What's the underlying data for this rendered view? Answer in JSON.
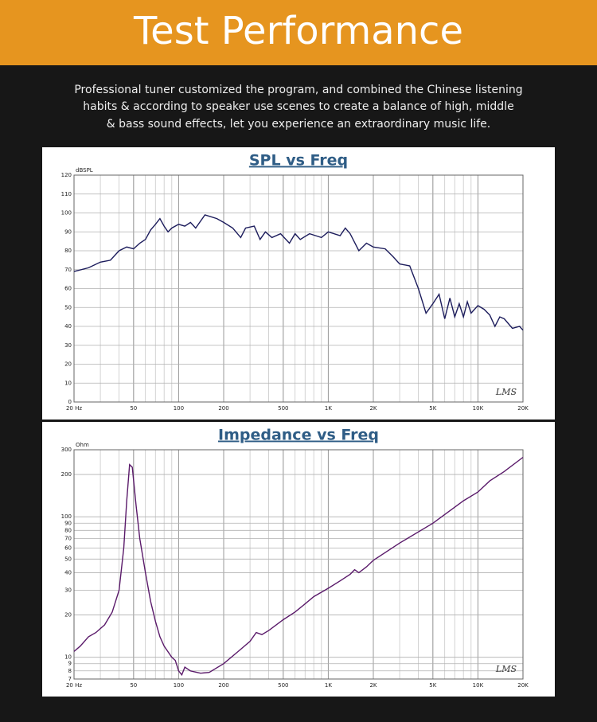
{
  "header": {
    "title": "Test Performance"
  },
  "description": [
    "Professional tuner customized the program, and combined the Chinese listening",
    "habits & according to speaker use scenes to create a balance of high, middle",
    "& bass sound effects, let you experience an extraordinary music life."
  ],
  "chart_data": [
    {
      "type": "line",
      "title": "SPL vs Freq",
      "ylabel": "dBSPL",
      "watermark": "LMS",
      "color": "#1c1c5c",
      "xscale": "log",
      "yscale": "linear",
      "xlim": [
        20,
        20000
      ],
      "ylim": [
        0,
        120
      ],
      "xticks": [
        {
          "value": 20,
          "label": "20 Hz"
        },
        50,
        100,
        200,
        500,
        {
          "value": 1000,
          "label": "1K"
        },
        {
          "value": 2000,
          "label": "2K"
        },
        {
          "value": 5000,
          "label": "5K"
        },
        {
          "value": 10000,
          "label": "10K"
        },
        {
          "value": 20000,
          "label": "20K"
        }
      ],
      "xgrid": [
        20,
        30,
        40,
        50,
        60,
        70,
        80,
        90,
        100,
        200,
        300,
        400,
        500,
        600,
        700,
        800,
        900,
        1000,
        2000,
        3000,
        4000,
        5000,
        6000,
        7000,
        8000,
        9000,
        10000,
        20000
      ],
      "yticks": [
        0,
        10,
        20,
        30,
        40,
        50,
        60,
        70,
        80,
        90,
        100,
        110,
        120
      ],
      "x": [
        20,
        25,
        30,
        35,
        40,
        45,
        50,
        55,
        60,
        65,
        70,
        75,
        80,
        85,
        90,
        100,
        110,
        120,
        130,
        150,
        180,
        200,
        230,
        260,
        280,
        320,
        350,
        380,
        420,
        480,
        550,
        600,
        650,
        750,
        900,
        1000,
        1200,
        1300,
        1400,
        1600,
        1800,
        2000,
        2400,
        2700,
        3000,
        3500,
        4000,
        4500,
        5000,
        5500,
        6000,
        6500,
        7000,
        7500,
        8000,
        8500,
        9000,
        10000,
        11000,
        12000,
        13000,
        14000,
        15000,
        17000,
        19000,
        20000
      ],
      "values": [
        69,
        71,
        74,
        75,
        80,
        82,
        81,
        84,
        86,
        91,
        94,
        97,
        93,
        90,
        92,
        94,
        93,
        95,
        92,
        99,
        97,
        95,
        92,
        87,
        92,
        93,
        86,
        90,
        87,
        89,
        84,
        89,
        86,
        89,
        87,
        90,
        88,
        92,
        89,
        80,
        84,
        82,
        81,
        77,
        73,
        72,
        60,
        47,
        52,
        57,
        44,
        55,
        45,
        52,
        45,
        53,
        47,
        51,
        49,
        46,
        40,
        45,
        44,
        39,
        40,
        38
      ]
    },
    {
      "type": "line",
      "title": "Impedance vs Freq",
      "ylabel": "Ohm",
      "watermark": "LMS",
      "color": "#5a1a6a",
      "xscale": "log",
      "yscale": "log",
      "xlim": [
        20,
        20000
      ],
      "ylim": [
        7,
        300
      ],
      "xticks": [
        {
          "value": 20,
          "label": "20 Hz"
        },
        50,
        100,
        200,
        500,
        {
          "value": 1000,
          "label": "1K"
        },
        {
          "value": 2000,
          "label": "2K"
        },
        {
          "value": 5000,
          "label": "5K"
        },
        {
          "value": 10000,
          "label": "10K"
        },
        {
          "value": 20000,
          "label": "20K"
        }
      ],
      "xgrid": [
        20,
        30,
        40,
        50,
        60,
        70,
        80,
        90,
        100,
        200,
        300,
        400,
        500,
        600,
        700,
        800,
        900,
        1000,
        2000,
        3000,
        4000,
        5000,
        6000,
        7000,
        8000,
        9000,
        10000,
        20000
      ],
      "yticks": [
        7,
        8,
        9,
        10,
        20,
        30,
        40,
        50,
        60,
        70,
        80,
        90,
        100,
        200,
        300
      ],
      "x": [
        20,
        22,
        25,
        28,
        32,
        36,
        40,
        43,
        45,
        47,
        49,
        52,
        55,
        60,
        65,
        70,
        75,
        80,
        90,
        95,
        100,
        105,
        110,
        120,
        140,
        160,
        200,
        250,
        300,
        330,
        360,
        400,
        500,
        600,
        700,
        800,
        1000,
        1200,
        1400,
        1500,
        1600,
        1800,
        2000,
        3000,
        5000,
        8000,
        10000,
        12000,
        15000,
        20000
      ],
      "values": [
        11,
        12,
        14,
        15,
        17,
        21,
        30,
        60,
        130,
        235,
        225,
        120,
        70,
        40,
        25,
        18,
        14,
        12,
        10,
        9.5,
        8,
        7.5,
        8.5,
        8,
        7.7,
        7.8,
        9,
        11,
        13,
        15,
        14.5,
        15.5,
        18.5,
        21,
        24,
        27,
        31,
        35,
        39,
        42,
        40,
        44,
        49,
        65,
        90,
        130,
        150,
        180,
        210,
        265
      ]
    }
  ]
}
